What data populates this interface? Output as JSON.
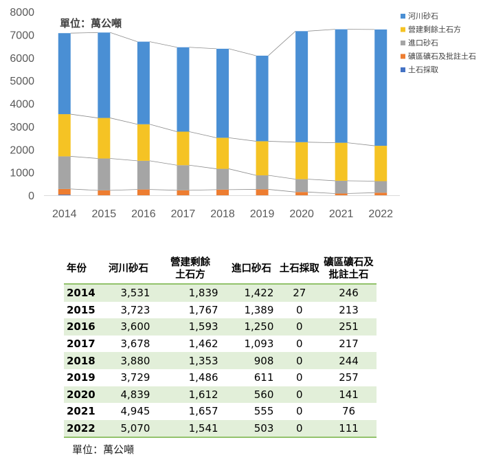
{
  "chart_data": {
    "type": "bar",
    "stacked": true,
    "unit_note": "單位：萬公噸",
    "categories": [
      "2014",
      "2015",
      "2016",
      "2017",
      "2018",
      "2019",
      "2020",
      "2021",
      "2022"
    ],
    "series": [
      {
        "name": "河川砂石",
        "color": "#4a8fd4",
        "values": [
          3531,
          3723,
          3600,
          3678,
          3880,
          3729,
          4839,
          4945,
          5070
        ]
      },
      {
        "name": "營建剩餘土石方",
        "color": "#f5c324",
        "values": [
          1839,
          1767,
          1593,
          1462,
          1353,
          1486,
          1612,
          1657,
          1541
        ]
      },
      {
        "name": "進口砂石",
        "color": "#a5a5a5",
        "values": [
          1422,
          1389,
          1250,
          1093,
          908,
          611,
          560,
          555,
          503
        ]
      },
      {
        "name": "礦區礦石及批註土石",
        "color": "#ed7d31",
        "values": [
          246,
          213,
          251,
          217,
          244,
          257,
          141,
          76,
          111
        ]
      },
      {
        "name": "土石採取",
        "color": "#4472c4",
        "values": [
          27,
          0,
          0,
          0,
          0,
          0,
          0,
          0,
          0
        ]
      }
    ],
    "yticks": [
      0,
      1000,
      2000,
      3000,
      4000,
      5000,
      6000,
      7000,
      8000
    ],
    "ylim": [
      0,
      8000
    ],
    "legend_position": "top-right",
    "grid": false
  },
  "table": {
    "headers": [
      "年份",
      "河川砂石",
      "營建剩餘\n土石方",
      "進口砂石",
      "土石採取",
      "礦區礦石及\n批註土石"
    ],
    "rows": [
      [
        "2014",
        "3,531",
        "1,839",
        "1,422",
        "27",
        "246"
      ],
      [
        "2015",
        "3,723",
        "1,767",
        "1,389",
        "0",
        "213"
      ],
      [
        "2016",
        "3,600",
        "1,593",
        "1,250",
        "0",
        "251"
      ],
      [
        "2017",
        "3,678",
        "1,462",
        "1,093",
        "0",
        "217"
      ],
      [
        "2018",
        "3,880",
        "1,353",
        "908",
        "0",
        "244"
      ],
      [
        "2019",
        "3,729",
        "1,486",
        "611",
        "0",
        "257"
      ],
      [
        "2020",
        "4,839",
        "1,612",
        "560",
        "0",
        "141"
      ],
      [
        "2021",
        "4,945",
        "1,657",
        "555",
        "0",
        "76"
      ],
      [
        "2022",
        "5,070",
        "1,541",
        "503",
        "0",
        "111"
      ]
    ],
    "unit_note": "單位：萬公噸"
  }
}
